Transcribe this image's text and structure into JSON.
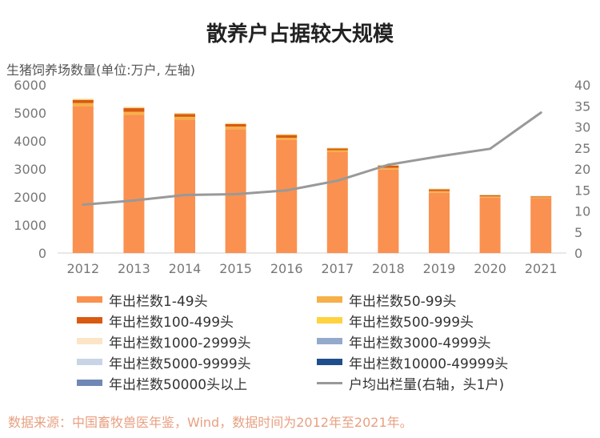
{
  "title": "散养户占据较大规模",
  "left_axis_label": "生猪饲养场数量(单位:万户, 左轴)",
  "source": "数据来源：中国畜牧兽医年鉴，Wind，数据时间为2012年至2021年。",
  "chart_data": {
    "type": "bar",
    "stacked": true,
    "title": "散养户占据较大规模",
    "ylabel": "生猪饲养场数量(单位:万户, 左轴)",
    "categories": [
      "2012",
      "2013",
      "2014",
      "2015",
      "2016",
      "2017",
      "2018",
      "2019",
      "2020",
      "2021"
    ],
    "ylim": [
      0,
      6000
    ],
    "yticks": [
      0,
      1000,
      2000,
      3000,
      4000,
      5000,
      6000
    ],
    "y2lim": [
      0,
      40
    ],
    "y2ticks": [
      0,
      5,
      10,
      15,
      20,
      25,
      30,
      35,
      40
    ],
    "series": [
      {
        "name": "年出栏数1-49头",
        "color": "#FA9150",
        "values": [
          5230,
          4930,
          4760,
          4420,
          4030,
          3600,
          2980,
          2150,
          1980,
          1960
        ]
      },
      {
        "name": "年出栏数50-99头",
        "color": "#F5B04A",
        "values": [
          120,
          110,
          100,
          90,
          80,
          70,
          60,
          60,
          40,
          30
        ]
      },
      {
        "name": "年出栏数100-499头",
        "color": "#D95A10",
        "values": [
          110,
          130,
          100,
          90,
          100,
          60,
          80,
          60,
          40,
          30
        ]
      },
      {
        "name": "年出栏数500-999头",
        "color": "#FFD23F",
        "values": [
          25,
          24,
          22,
          20,
          18,
          16,
          14,
          13,
          10,
          8
        ]
      },
      {
        "name": "年出栏数1000-2999头",
        "color": "#FDE4C6",
        "values": [
          12,
          12,
          11,
          10,
          9,
          8,
          7,
          6,
          5,
          4
        ]
      },
      {
        "name": "年出栏数3000-4999头",
        "color": "#94AACC",
        "values": [
          3,
          3,
          3,
          3,
          3,
          2,
          2,
          2,
          2,
          2
        ]
      },
      {
        "name": "年出栏数5000-9999头",
        "color": "#C9D5E6",
        "values": [
          2,
          2,
          2,
          2,
          2,
          2,
          2,
          2,
          2,
          2
        ]
      },
      {
        "name": "年出栏数10000-49999头",
        "color": "#1F4E8C",
        "values": [
          1,
          1,
          1,
          1,
          1,
          1,
          1,
          1,
          1,
          1
        ]
      },
      {
        "name": "年出栏数50000头以上",
        "color": "#7088B5",
        "values": [
          0.2,
          0.2,
          0.2,
          0.2,
          0.2,
          0.2,
          0.3,
          0.3,
          0.3,
          0.3
        ]
      }
    ],
    "line": {
      "name": "户均出栏量(右轴，头1户)",
      "color": "#999999",
      "axis": "right",
      "values": [
        11.5,
        12.5,
        13.8,
        14.0,
        14.9,
        17.2,
        21.0,
        23.0,
        24.8,
        33.4
      ]
    },
    "legend_position": "bottom"
  }
}
